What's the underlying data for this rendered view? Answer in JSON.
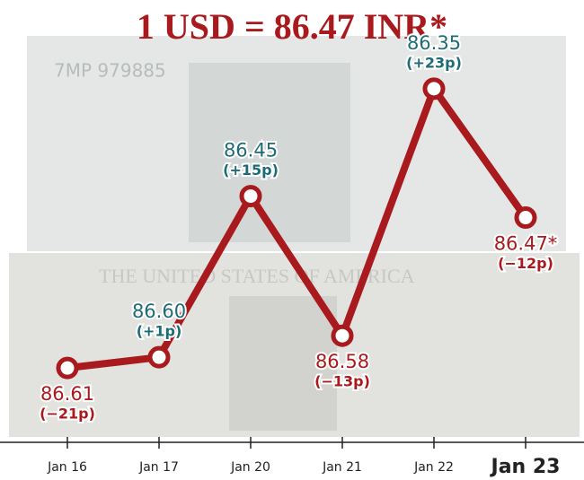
{
  "chart_data": {
    "type": "line",
    "title": "1 USD = 86.47 INR*",
    "categories": [
      "Jan 16",
      "Jan 17",
      "Jan 20",
      "Jan 21",
      "Jan 22",
      "Jan 23"
    ],
    "values": [
      86.61,
      86.6,
      86.45,
      86.58,
      86.35,
      86.47
    ],
    "value_labels": [
      "86.61",
      "86.60",
      "86.45",
      "86.58",
      "86.35",
      "86.47*"
    ],
    "changes": [
      -21,
      1,
      15,
      -13,
      23,
      -12
    ],
    "change_labels": [
      "(−21p)",
      "(+1p)",
      "(+15p)",
      "(−13p)",
      "(+23p)",
      "(−12p)"
    ],
    "color": "#a81a1d",
    "up_color": "#1d6b74",
    "down_color": "#a81a1d",
    "ylim": [
      86.66,
      86.3
    ]
  }
}
